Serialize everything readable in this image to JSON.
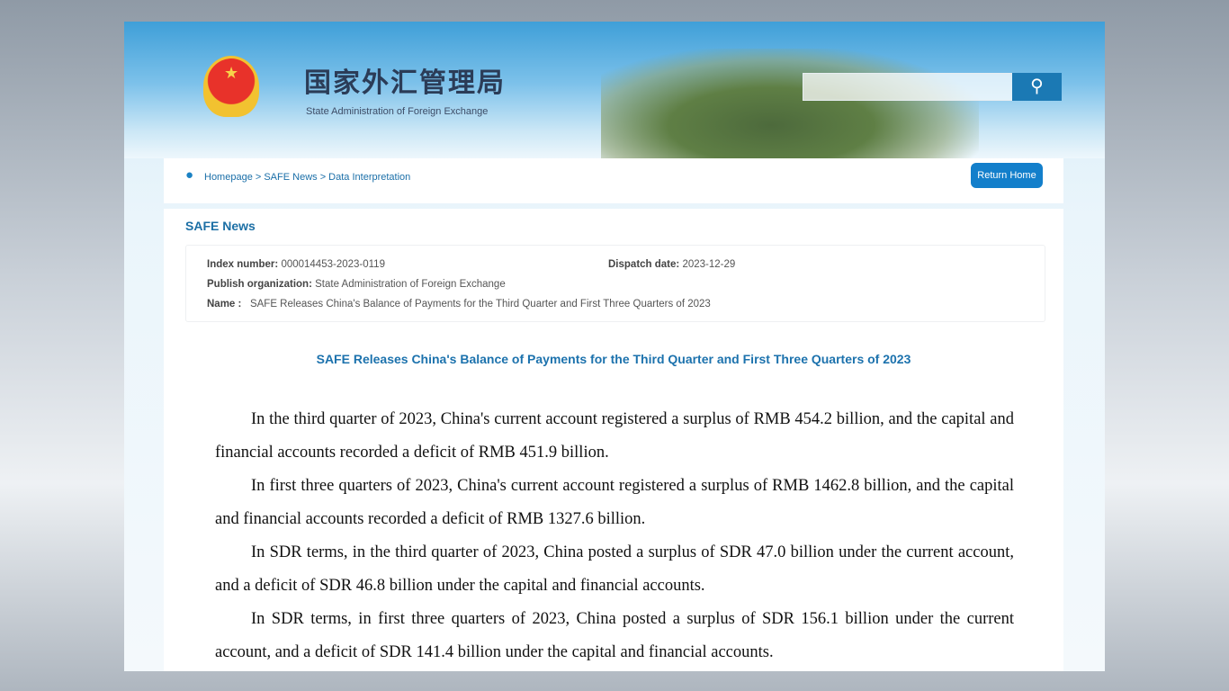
{
  "header": {
    "logo_cn": "国家外汇管理局",
    "logo_en": "State Administration of Foreign Exchange",
    "search_placeholder": "",
    "search_icon": "magnifier-icon"
  },
  "breadcrumb": {
    "text": "Homepage > SAFE News > Data Interpretation",
    "return_label": "Return Home"
  },
  "section_title": "SAFE News",
  "info": {
    "index_label": "Index number:",
    "index_value": "000014453-2023-0119",
    "dispatch_label": "Dispatch date:",
    "dispatch_value": "2023-12-29",
    "org_label": "Publish organization:",
    "org_value": "State Administration of Foreign Exchange",
    "name_label": "Name :",
    "name_value": "SAFE Releases China's Balance of Payments for the Third Quarter and First Three Quarters of 2023"
  },
  "article": {
    "title": "SAFE Releases China's Balance of Payments for the Third Quarter and First Three Quarters of 2023",
    "paragraphs": [
      "In the third quarter of 2023, China's current account registered a surplus of RMB 454.2 billion, and the capital and financial accounts recorded a deficit of RMB 451.9 billion.",
      "In first three quarters of 2023, China's current account registered a surplus of RMB 1462.8 billion, and the capital and financial accounts recorded a deficit of RMB 1327.6 billion.",
      "In SDR terms, in the third quarter of 2023, China posted a surplus of SDR 47.0 billion under the current account, and a deficit of SDR 46.8 billion under the capital and financial accounts.",
      "In SDR terms, in first three quarters of 2023, China posted a surplus of SDR 156.1 billion under the current account, and a deficit of SDR 141.4 billion under the capital and financial accounts."
    ]
  }
}
